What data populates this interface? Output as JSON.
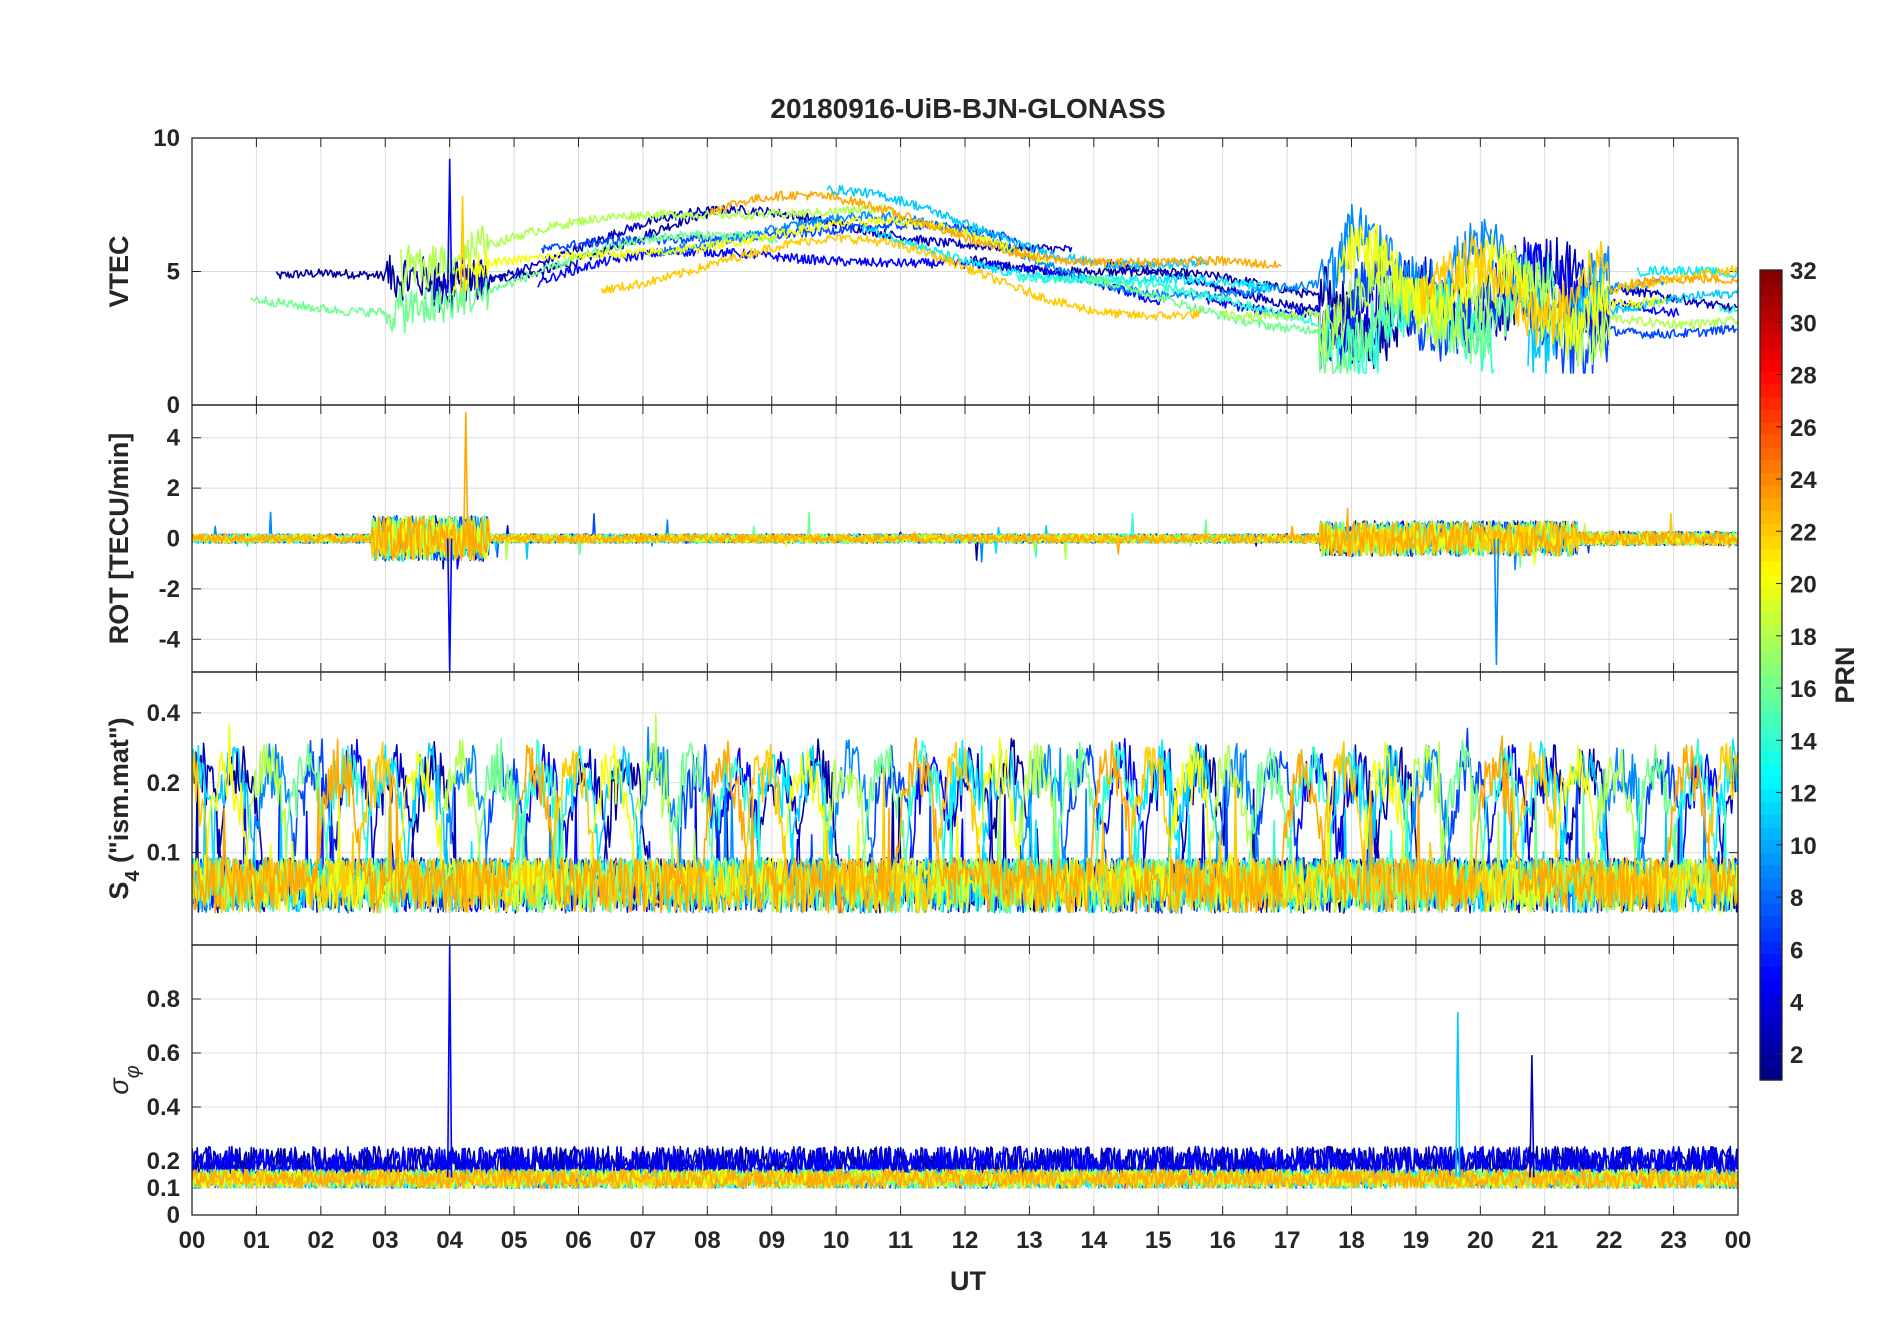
{
  "chart_data": {
    "type": "line",
    "title": "20180916-UiB-BJN-GLONASS",
    "xlabel": "UT",
    "x_tick_labels": [
      "00",
      "01",
      "02",
      "03",
      "04",
      "05",
      "06",
      "07",
      "08",
      "09",
      "10",
      "11",
      "12",
      "13",
      "14",
      "15",
      "16",
      "17",
      "18",
      "19",
      "20",
      "21",
      "22",
      "23",
      "00"
    ],
    "xlim_hours": [
      0,
      24
    ],
    "grid": true,
    "colorbar": {
      "label": "PRN",
      "range": [
        1,
        32
      ],
      "colormap": "jet",
      "ticks": [
        2,
        4,
        6,
        8,
        10,
        12,
        14,
        16,
        18,
        20,
        22,
        24,
        26,
        28,
        30,
        32
      ],
      "position": "right"
    },
    "panels": [
      {
        "id": "vtec",
        "ylabel": "VTEC",
        "ylim": [
          0,
          10
        ],
        "y_ticks": [
          0,
          5,
          10
        ],
        "y_tick_labels": [
          "0",
          "5",
          "10"
        ],
        "y_tick_labels_hidden": [
          0
        ],
        "description_values": {
          "baseline_range": [
            2,
            8
          ],
          "spikes": [
            {
              "hour": 4.0,
              "value": 9.2,
              "prn": 5
            },
            {
              "hour": 4.2,
              "value": 7.8,
              "prn": 22
            }
          ],
          "daytime_peak": {
            "hour": 10.1,
            "value": 8.0
          }
        }
      },
      {
        "id": "rot",
        "ylabel": "ROT [TECU/min]",
        "ylim": [
          -5.3,
          5.3
        ],
        "y_ticks": [
          -4,
          -2,
          0,
          2,
          4
        ],
        "y_tick_labels": [
          "-4",
          "-2",
          "0",
          "2",
          "4"
        ],
        "spikes": [
          {
            "hour": 4.0,
            "value": -5.3,
            "prn": 5
          },
          {
            "hour": 4.25,
            "value": 5.0,
            "prn": 23
          },
          {
            "hour": 20.25,
            "value": -5.0,
            "prn": 9
          }
        ]
      },
      {
        "id": "s4",
        "ylabel": "S4 (\"ism.mat\")",
        "ylabel_main": "S",
        "ylabel_sub": "4",
        "ylabel_rest": " (\"ism.mat\")",
        "ylim": [
          0.04,
          0.6
        ],
        "y_ticks": [
          0.1,
          0.2,
          0.4
        ],
        "y_tick_labels": [
          "0.1",
          "0.2",
          "0.4"
        ],
        "y_scale": "log"
      },
      {
        "id": "sigma_phi",
        "ylabel": "σφ",
        "ylabel_main": "σ",
        "ylabel_sub": "φ",
        "ylim": [
          0,
          1
        ],
        "y_ticks": [
          0,
          0.1,
          0.2,
          0.4,
          0.6,
          0.8
        ],
        "y_tick_labels": [
          "0",
          "0.1",
          "0.2",
          "0.4",
          "0.6",
          "0.8"
        ],
        "y_tick_labels_hidden": [
          0
        ],
        "spikes": [
          {
            "hour": 4.0,
            "value": 1.0,
            "prn": 5
          },
          {
            "hour": 19.65,
            "value": 0.75,
            "prn": 11
          },
          {
            "hour": 20.8,
            "value": 0.59,
            "prn": 3
          }
        ]
      }
    ],
    "series_prns": [
      2,
      3,
      5,
      7,
      9,
      11,
      12,
      14,
      16,
      18,
      20,
      22,
      23
    ]
  }
}
